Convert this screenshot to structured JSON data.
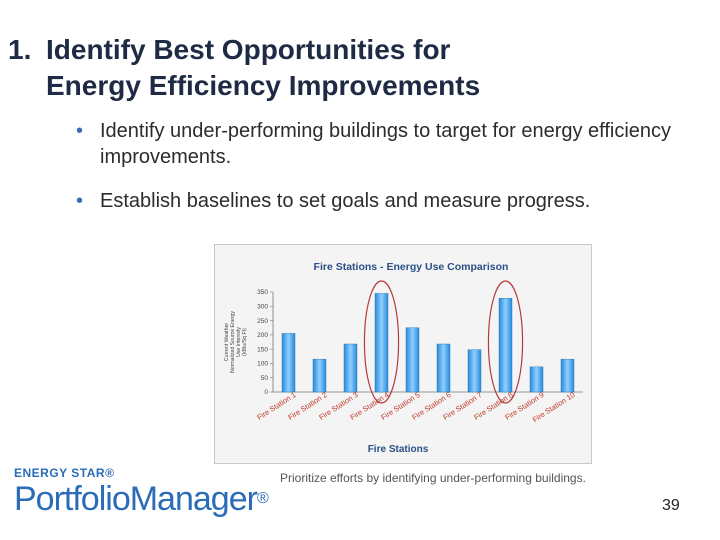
{
  "slide": {
    "title_number": "1.",
    "title_line1": "Identify Best Opportunities for",
    "title_line2": "Energy Efficiency Improvements",
    "bullets": [
      "Identify under-performing buildings to target for energy efficiency improvements.",
      "Establish baselines to set goals and measure progress."
    ],
    "caption": "Prioritize efforts by identifying under-performing buildings.",
    "page_number": "39",
    "logo_top": "ENERGY STAR®",
    "logo_word1": "Portfolio",
    "logo_word2": "Manager",
    "logo_reg": "®"
  },
  "colors": {
    "bar_top": "#8fd0ff",
    "bar_bottom": "#2a8ad8",
    "highlight_ring": "#b43a3a",
    "chart_title": "#2a4f86"
  },
  "chart_data": {
    "type": "bar",
    "title": "Fire Stations - Energy Use Comparison",
    "xlabel": "Fire Stations",
    "ylabel_lines": [
      "Current Weather",
      "Normalized Source Energy",
      "Use Intensity",
      "(kBtu/Sq Ft)"
    ],
    "categories": [
      "Fire Station 1",
      "Fire Station 2",
      "Fire Station 3",
      "Fire Station 4",
      "Fire Station 5",
      "Fire Station 6",
      "Fire Station 7",
      "Fire Station 8",
      "Fire Station 9",
      "Fire Station 10"
    ],
    "values": [
      205,
      115,
      168,
      345,
      225,
      168,
      148,
      328,
      88,
      115
    ],
    "highlighted": [
      "Fire Station 4",
      "Fire Station 8"
    ],
    "ylim": [
      0,
      350
    ],
    "yticks": [
      "0",
      "50",
      "100",
      "150",
      "200",
      "250",
      "300",
      "350"
    ],
    "legend": "none",
    "grid": false
  }
}
